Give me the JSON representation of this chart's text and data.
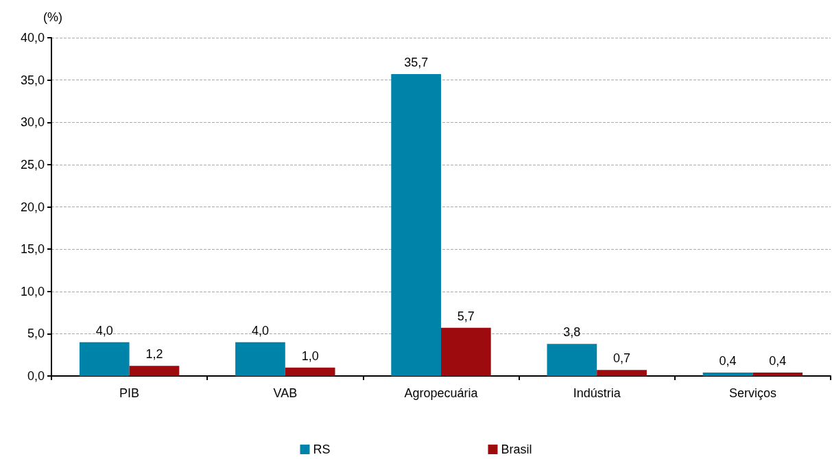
{
  "chart_data": {
    "type": "bar",
    "ylabel": "(%)",
    "categories": [
      "PIB",
      "VAB",
      "Agropecuária",
      "Indústria",
      "Serviços"
    ],
    "series": [
      {
        "name": "RS",
        "color": "#0083a9",
        "values": [
          4.0,
          4.0,
          35.7,
          3.8,
          0.4
        ],
        "value_labels": [
          "4,0",
          "4,0",
          "35,7",
          "3,8",
          "0,4"
        ]
      },
      {
        "name": "Brasil",
        "color": "#9e0b0f",
        "values": [
          1.2,
          1.0,
          5.7,
          0.7,
          0.4
        ],
        "value_labels": [
          "1,2",
          "1,0",
          "5,7",
          "0,7",
          "0,4"
        ]
      }
    ],
    "ylim": [
      0,
      40
    ],
    "yticks": [
      {
        "value": 0,
        "label": "0,0"
      },
      {
        "value": 5,
        "label": "5,0"
      },
      {
        "value": 10,
        "label": "10,0"
      },
      {
        "value": 15,
        "label": "15,0"
      },
      {
        "value": 20,
        "label": "20,0"
      },
      {
        "value": 25,
        "label": "25,0"
      },
      {
        "value": 30,
        "label": "30,0"
      },
      {
        "value": 35,
        "label": "35,0"
      },
      {
        "value": 40,
        "label": "40,0"
      }
    ],
    "grid": "y",
    "legend": "bottom"
  }
}
